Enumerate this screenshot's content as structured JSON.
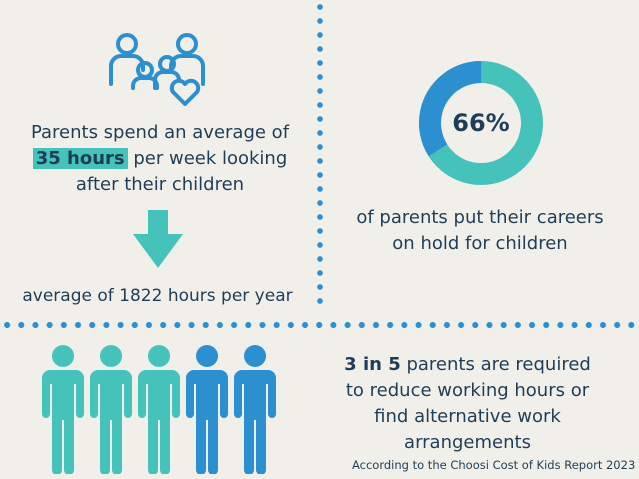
{
  "family_icon": "family-heart-icon",
  "hours_stat": {
    "prefix": "Parents spend an average of",
    "highlight": "35 hours",
    "suffix": "per week looking",
    "line3": "after their children"
  },
  "down_arrow_icon": "arrow-down-icon",
  "yearly_stat": "average of 1822 hours per year",
  "careers_stat": {
    "percent": "66%",
    "percent_value": 66,
    "line1": "of parents put their careers",
    "line2": "on hold for children"
  },
  "work_stat": {
    "bold": "3 in 5",
    "line1_rest": " parents are required",
    "line2": "to reduce working hours or",
    "line3": "find alternative work",
    "line4": "arrangements"
  },
  "people_icons": [
    "person-icon",
    "person-icon",
    "person-icon",
    "person-icon",
    "person-icon"
  ],
  "source": "According to the Choosi Cost of Kids Report 2023",
  "colors": {
    "background": "#f1efea",
    "teal": "#45c2b9",
    "blue": "#2b8fd0",
    "text": "#1f3d57"
  }
}
